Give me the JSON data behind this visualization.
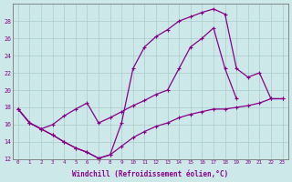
{
  "background_color": "#cce8e8",
  "line_color": "#880088",
  "grid_color": "#aacccc",
  "xlabel": "Windchill (Refroidissement éolien,°C)",
  "xlim": [
    -0.5,
    23.5
  ],
  "ylim": [
    12,
    30
  ],
  "yticks": [
    12,
    14,
    16,
    18,
    20,
    22,
    24,
    26,
    28
  ],
  "xticks": [
    0,
    1,
    2,
    3,
    4,
    5,
    6,
    7,
    8,
    9,
    10,
    11,
    12,
    13,
    14,
    15,
    16,
    17,
    18,
    19,
    20,
    21,
    22,
    23
  ],
  "line1_x": [
    0,
    1,
    2,
    3,
    4,
    5,
    6,
    7,
    8,
    9,
    10,
    11,
    12,
    13,
    14,
    15,
    16,
    17,
    18,
    19
  ],
  "line1_y": [
    17.8,
    16.2,
    15.5,
    16.0,
    17.0,
    17.8,
    18.5,
    16.2,
    16.8,
    17.5,
    18.2,
    18.8,
    19.5,
    20.0,
    22.5,
    25.0,
    26.0,
    27.2,
    22.5,
    19.0
  ],
  "line2_x": [
    0,
    1,
    2,
    3,
    4,
    5,
    6,
    7,
    8,
    9,
    10,
    11,
    12,
    13,
    14,
    15,
    16,
    17,
    18,
    19,
    20,
    21,
    22,
    23
  ],
  "line2_y": [
    17.8,
    16.2,
    15.5,
    14.8,
    14.0,
    13.3,
    12.8,
    12.1,
    12.5,
    16.2,
    22.5,
    25.0,
    26.2,
    27.0,
    28.0,
    28.5,
    29.0,
    29.4,
    28.8,
    22.5,
    21.5,
    22.0,
    19.0,
    19.0
  ],
  "line3_x": [
    0,
    1,
    2,
    3,
    4,
    5,
    6,
    7,
    8,
    9,
    10,
    11,
    12,
    13,
    14,
    15,
    16,
    17,
    18,
    19,
    20,
    21,
    22,
    23
  ],
  "line3_y": [
    17.8,
    16.2,
    15.5,
    14.8,
    14.0,
    13.3,
    12.8,
    12.1,
    12.5,
    13.5,
    14.5,
    15.2,
    15.8,
    16.2,
    16.8,
    17.2,
    17.5,
    17.8,
    17.8,
    18.0,
    18.2,
    18.5,
    19.0,
    19.0
  ]
}
